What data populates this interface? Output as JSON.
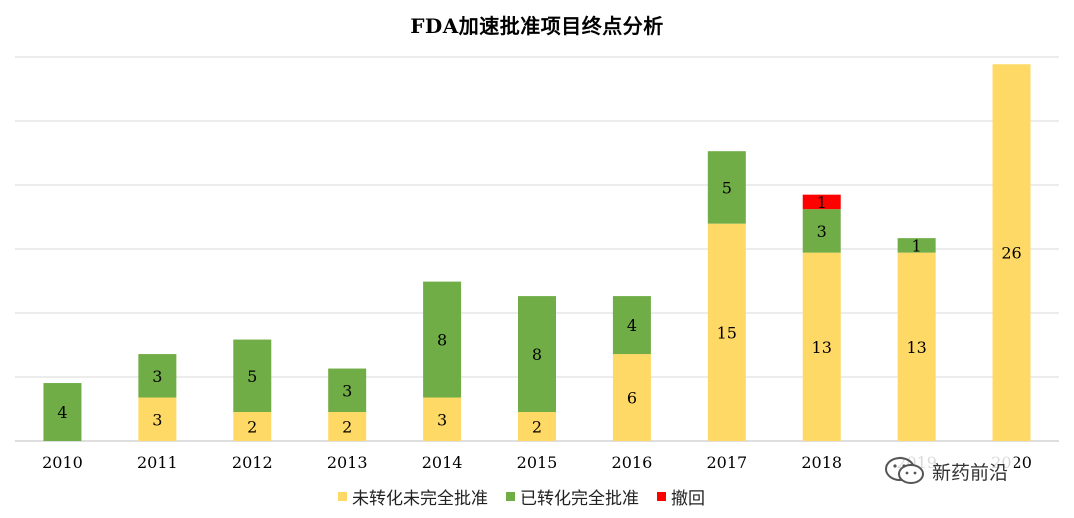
{
  "chart_data": {
    "type": "bar",
    "stacked": true,
    "title": "FDA加速批准项目终点分析",
    "categories": [
      "2010",
      "2011",
      "2012",
      "2013",
      "2014",
      "2015",
      "2016",
      "2017",
      "2018",
      "2019",
      "2020"
    ],
    "series": [
      {
        "name": "未转化未完全批准",
        "color": "#FFD966",
        "values": [
          null,
          3,
          2,
          2,
          3,
          2,
          6,
          15,
          13,
          13,
          26
        ]
      },
      {
        "name": "已转化完全批准",
        "color": "#70AD47",
        "values": [
          4,
          3,
          5,
          3,
          8,
          8,
          4,
          5,
          3,
          1,
          null
        ]
      },
      {
        "name": "撤回",
        "color": "#FF0000",
        "values": [
          null,
          null,
          null,
          null,
          null,
          null,
          null,
          null,
          1,
          null,
          null
        ]
      }
    ],
    "ylim": [
      0,
      26.5
    ],
    "grid": true,
    "legend_position": "bottom"
  },
  "watermark": {
    "text": "新药前沿",
    "icon": "wechat-icon"
  }
}
